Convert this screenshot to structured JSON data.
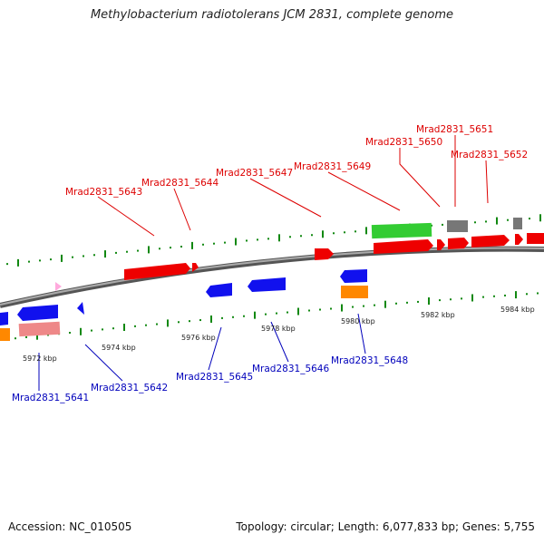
{
  "title": "Methylobacterium radiotolerans JCM 2831, complete genome",
  "footer": {
    "accession": "Accession: NC_010505",
    "summary": "Topology: circular; Length: 6,077,833 bp; Genes: 5,755"
  },
  "colors": {
    "backbone": "#888888",
    "forward_label": "#dd0000",
    "reverse_label": "#0000bb",
    "tick": "#118811",
    "cds": "#ee0000",
    "cds_reverse": "#1111ee",
    "rrna": "#33cc33",
    "pseudo": "#777777",
    "trna": "#ff8800",
    "light_red": "#ee8888",
    "pink": "#ffaadd"
  },
  "scale": {
    "unit": "kbp",
    "tick_labels": [
      "5972 kbp",
      "5974 kbp",
      "5976 kbp",
      "5978 kbp",
      "5980 kbp",
      "5982 kbp",
      "5984 kbp"
    ]
  },
  "forward_genes": [
    "Mrad2831_5643",
    "Mrad2831_5644",
    "Mrad2831_5647",
    "Mrad2831_5649",
    "Mrad2831_5650",
    "Mrad2831_5651",
    "Mrad2831_5652"
  ],
  "reverse_genes": [
    "Mrad2831_5641",
    "Mrad2831_5642",
    "Mrad2831_5645",
    "Mrad2831_5646",
    "Mrad2831_5648"
  ]
}
